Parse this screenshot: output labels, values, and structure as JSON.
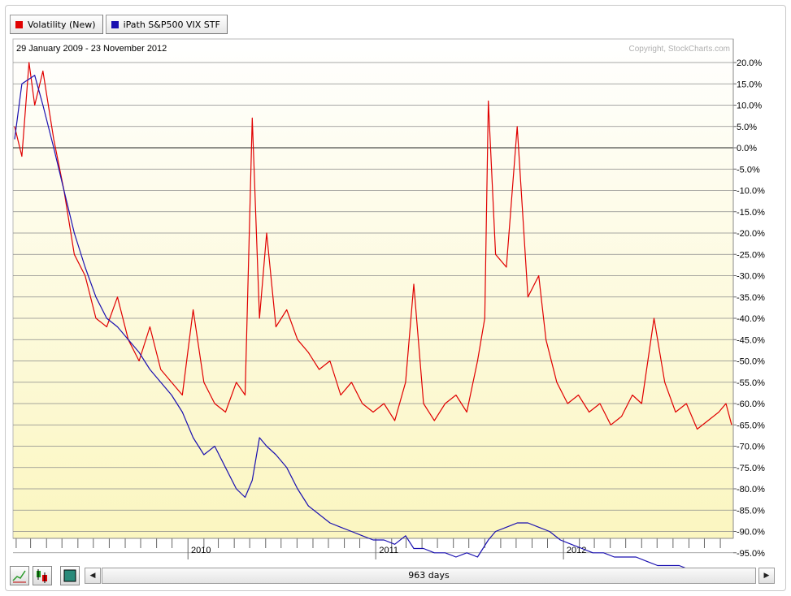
{
  "legend": [
    {
      "label": "Volatility (New)",
      "color": "#e00000"
    },
    {
      "label": "iPath S&P500 VIX STF",
      "color": "#1a10b0"
    }
  ],
  "chart": {
    "date_range": "29 January 2009 - 23 November 2012",
    "copyright": "Copyright, StockCharts.com"
  },
  "toolbar": {
    "line_icon": "line-chart-icon",
    "bar_icon": "ohlc-bars-icon",
    "color_icon": "color-square-icon",
    "prev_arrow": "◀",
    "next_arrow": "▶",
    "period_label": "963 days"
  },
  "chart_data": {
    "type": "line",
    "title": "",
    "date_range_text": "29 January 2009 - 23 November 2012",
    "x_start": "2009-01-29",
    "x_end": "2012-11-23",
    "x_tick_labels": [
      "2010",
      "2011",
      "2012"
    ],
    "y_axis_side": "right",
    "y_unit": "%",
    "ylim": [
      -100,
      22
    ],
    "y_ticks": [
      "20.0%",
      "15.0%",
      "10.0%",
      "5.0%",
      "0.0%",
      "-5.0%",
      "-10.0%",
      "-15.0%",
      "-20.0%",
      "-25.0%",
      "-30.0%",
      "-35.0%",
      "-40.0%",
      "-45.0%",
      "-50.0%",
      "-55.0%",
      "-60.0%",
      "-65.0%",
      "-70.0%",
      "-75.0%",
      "-80.0%",
      "-85.0%",
      "-90.0%",
      "-95.0%"
    ],
    "grid": true,
    "legend_position": "top-left",
    "series": [
      {
        "name": "Volatility (New)",
        "color": "#e00000",
        "x": [
          "2009-01-29",
          "2009-02-12",
          "2009-02-26",
          "2009-03-09",
          "2009-03-25",
          "2009-04-15",
          "2009-05-05",
          "2009-05-25",
          "2009-06-15",
          "2009-07-06",
          "2009-07-27",
          "2009-08-17",
          "2009-09-07",
          "2009-09-28",
          "2009-10-19",
          "2009-11-09",
          "2009-11-30",
          "2009-12-21",
          "2010-01-11",
          "2010-02-01",
          "2010-02-22",
          "2010-03-15",
          "2010-04-05",
          "2010-04-22",
          "2010-05-06",
          "2010-05-20",
          "2010-06-03",
          "2010-06-21",
          "2010-07-12",
          "2010-08-02",
          "2010-08-23",
          "2010-09-13",
          "2010-10-04",
          "2010-10-25",
          "2010-11-15",
          "2010-12-06",
          "2010-12-27",
          "2011-01-17",
          "2011-02-07",
          "2011-02-28",
          "2011-03-16",
          "2011-04-04",
          "2011-04-25",
          "2011-05-16",
          "2011-06-06",
          "2011-06-27",
          "2011-07-18",
          "2011-08-01",
          "2011-08-08",
          "2011-08-22",
          "2011-09-12",
          "2011-10-03",
          "2011-10-24",
          "2011-11-14",
          "2011-11-28",
          "2011-12-19",
          "2012-01-09",
          "2012-01-30",
          "2012-02-20",
          "2012-03-12",
          "2012-04-02",
          "2012-04-23",
          "2012-05-14",
          "2012-06-01",
          "2012-06-25",
          "2012-07-16",
          "2012-08-06",
          "2012-08-27",
          "2012-09-17",
          "2012-10-08",
          "2012-10-29",
          "2012-11-12",
          "2012-11-23"
        ],
        "values": [
          5,
          -2,
          20,
          10,
          18,
          2,
          -10,
          -25,
          -30,
          -40,
          -42,
          -35,
          -45,
          -50,
          -42,
          -52,
          -55,
          -58,
          -38,
          -55,
          -60,
          -62,
          -55,
          -58,
          7,
          -40,
          -20,
          -42,
          -38,
          -45,
          -48,
          -52,
          -50,
          -58,
          -55,
          -60,
          -62,
          -60,
          -64,
          -55,
          -32,
          -60,
          -64,
          -60,
          -58,
          -62,
          -50,
          -40,
          11,
          -25,
          -28,
          5,
          -35,
          -30,
          -45,
          -55,
          -60,
          -58,
          -62,
          -60,
          -65,
          -63,
          -58,
          -60,
          -40,
          -55,
          -62,
          -60,
          -66,
          -64,
          -62,
          -60,
          -65
        ]
      },
      {
        "name": "iPath S&P500 VIX STF",
        "color": "#1a10b0",
        "x": [
          "2009-01-29",
          "2009-02-12",
          "2009-03-09",
          "2009-03-25",
          "2009-04-15",
          "2009-05-05",
          "2009-05-25",
          "2009-06-15",
          "2009-07-06",
          "2009-07-27",
          "2009-08-17",
          "2009-09-07",
          "2009-09-28",
          "2009-10-19",
          "2009-11-09",
          "2009-11-30",
          "2009-12-21",
          "2010-01-11",
          "2010-02-01",
          "2010-02-22",
          "2010-03-15",
          "2010-04-05",
          "2010-04-22",
          "2010-05-06",
          "2010-05-20",
          "2010-06-03",
          "2010-06-21",
          "2010-07-12",
          "2010-08-02",
          "2010-08-23",
          "2010-09-13",
          "2010-10-04",
          "2010-10-25",
          "2010-11-15",
          "2010-12-06",
          "2010-12-27",
          "2011-01-17",
          "2011-02-07",
          "2011-02-28",
          "2011-03-16",
          "2011-04-04",
          "2011-04-25",
          "2011-05-16",
          "2011-06-06",
          "2011-06-27",
          "2011-07-18",
          "2011-08-08",
          "2011-08-22",
          "2011-09-12",
          "2011-10-03",
          "2011-10-24",
          "2011-11-14",
          "2011-12-05",
          "2011-12-26",
          "2012-01-16",
          "2012-02-06",
          "2012-02-27",
          "2012-03-19",
          "2012-04-09",
          "2012-04-30",
          "2012-05-21",
          "2012-06-11",
          "2012-07-02",
          "2012-07-23",
          "2012-08-13",
          "2012-09-03",
          "2012-09-24",
          "2012-10-15",
          "2012-11-05",
          "2012-11-23"
        ],
        "values": [
          2,
          15,
          17,
          10,
          0,
          -10,
          -20,
          -28,
          -35,
          -40,
          -42,
          -45,
          -48,
          -52,
          -55,
          -58,
          -62,
          -68,
          -72,
          -70,
          -75,
          -80,
          -82,
          -78,
          -68,
          -70,
          -72,
          -75,
          -80,
          -84,
          -86,
          -88,
          -89,
          -90,
          -91,
          -92,
          -92,
          -93,
          -91,
          -94,
          -94,
          -95,
          -95,
          -96,
          -95,
          -96,
          -92,
          -90,
          -89,
          -88,
          -88,
          -89,
          -90,
          -92,
          -93,
          -94,
          -95,
          -95,
          -96,
          -96,
          -96,
          -97,
          -98,
          -98,
          -98,
          -99,
          -99,
          -99,
          -99,
          -99
        ]
      }
    ]
  }
}
